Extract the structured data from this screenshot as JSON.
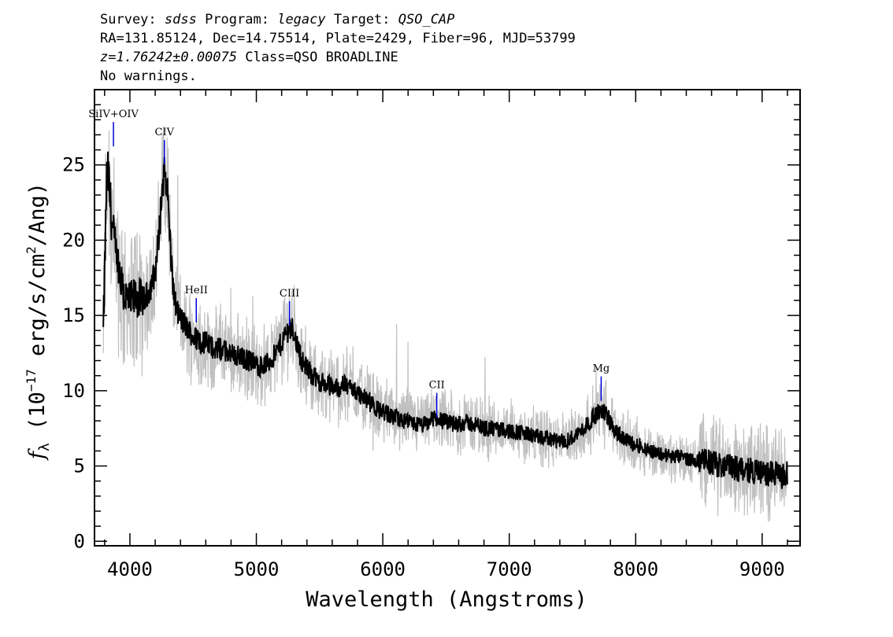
{
  "header": {
    "line1": [
      {
        "text": "Survey: ",
        "italic": false
      },
      {
        "text": "sdss",
        "italic": true
      },
      {
        "text": " Program: ",
        "italic": false
      },
      {
        "text": "legacy",
        "italic": true
      },
      {
        "text": " Target: ",
        "italic": false
      },
      {
        "text": "QSO_CAP",
        "italic": true
      }
    ],
    "line2": "RA=131.85124, Dec=14.75514, Plate=2429, Fiber=96, MJD=53799",
    "line3": [
      {
        "text": "z=1.76242±0.00075",
        "italic": true
      },
      {
        "text": " Class=QSO BROADLINE",
        "italic": false
      }
    ],
    "line4": "No warnings."
  },
  "chart_data": {
    "type": "line",
    "xlabel": "Wavelength (Angstroms)",
    "ylabel": "f_λ (10^-17 erg/s/cm^2/Ang)",
    "ylabel_parts": {
      "f": "f",
      "sub": "λ",
      "pre": " (10",
      "sup1": "−17",
      "mid": " erg/s/cm",
      "sup2": "2",
      "post": "/Ang)"
    },
    "xlim": [
      3720,
      9300
    ],
    "ylim": [
      -0.3,
      30.0
    ],
    "xticks": [
      4000,
      5000,
      6000,
      7000,
      8000,
      9000
    ],
    "yticks": [
      0,
      5,
      10,
      15,
      20,
      25
    ],
    "x_minor_step": 200,
    "y_minor_step": 1,
    "colors": {
      "flux": "#000000",
      "noise": "#c0c0c0",
      "line_marker": "#0000dd"
    },
    "series": [
      {
        "style": "spectrum",
        "x": [
          3790,
          3805,
          3815,
          3830,
          3845,
          3860,
          3880,
          3900,
          3925,
          3950,
          3975,
          4000,
          4025,
          4050,
          4075,
          4100,
          4125,
          4150,
          4175,
          4200,
          4225,
          4250,
          4265,
          4280,
          4295,
          4310,
          4330,
          4350,
          4375,
          4400,
          4450,
          4500,
          4550,
          4600,
          4650,
          4700,
          4750,
          4800,
          4850,
          4900,
          4950,
          5000,
          5050,
          5100,
          5150,
          5200,
          5240,
          5270,
          5300,
          5330,
          5360,
          5400,
          5450,
          5500,
          5550,
          5600,
          5650,
          5700,
          5750,
          5800,
          5850,
          5900,
          5950,
          6000,
          6050,
          6100,
          6150,
          6200,
          6250,
          6300,
          6350,
          6400,
          6450,
          6500,
          6550,
          6600,
          6650,
          6700,
          6750,
          6800,
          6850,
          6900,
          6950,
          7000,
          7050,
          7100,
          7150,
          7200,
          7250,
          7300,
          7350,
          7400,
          7450,
          7500,
          7550,
          7600,
          7650,
          7700,
          7730,
          7750,
          7780,
          7800,
          7850,
          7900,
          7950,
          8000,
          8050,
          8100,
          8150,
          8200,
          8250,
          8300,
          8350,
          8400,
          8450,
          8500,
          8550,
          8600,
          8650,
          8700,
          8750,
          8800,
          8850,
          8900,
          8950,
          9000,
          9050,
          9100,
          9150,
          9200
        ],
        "y": [
          13.8,
          19.5,
          23.8,
          24.3,
          22.5,
          21.0,
          19.5,
          18.2,
          17.0,
          16.5,
          16.1,
          15.8,
          16.0,
          16.3,
          16.1,
          15.9,
          16.2,
          16.6,
          17.2,
          17.9,
          19.8,
          22.8,
          24.2,
          24.6,
          23.5,
          21.3,
          18.2,
          16.2,
          15.2,
          14.8,
          14.2,
          13.6,
          13.3,
          13.2,
          12.9,
          12.8,
          12.7,
          12.5,
          12.3,
          12.1,
          12.0,
          11.7,
          11.6,
          11.9,
          12.4,
          13.2,
          13.9,
          14.3,
          13.8,
          12.8,
          12.0,
          11.5,
          11.0,
          10.6,
          10.4,
          10.3,
          10.2,
          10.4,
          10.2,
          9.9,
          9.5,
          9.2,
          8.8,
          8.6,
          8.4,
          8.2,
          8.0,
          7.9,
          7.8,
          7.7,
          7.8,
          8.2,
          8.1,
          7.9,
          7.8,
          7.8,
          7.9,
          7.8,
          7.7,
          7.5,
          7.5,
          7.4,
          7.4,
          7.3,
          7.3,
          7.2,
          7.1,
          7.0,
          6.8,
          6.9,
          6.7,
          6.6,
          6.7,
          6.9,
          7.2,
          7.6,
          8.1,
          8.5,
          8.7,
          8.6,
          8.3,
          7.8,
          7.2,
          6.8,
          6.6,
          6.4,
          6.3,
          6.1,
          5.9,
          5.8,
          5.7,
          5.6,
          5.6,
          5.5,
          5.4,
          5.3,
          5.3,
          5.2,
          5.1,
          5.0,
          4.9,
          4.8,
          4.8,
          4.7,
          4.7,
          4.6,
          4.5,
          4.5,
          4.3,
          4.5
        ]
      }
    ],
    "line_labels": [
      {
        "label": "SiIV+OIV",
        "x": 3870,
        "y": 27.8
      },
      {
        "label": "CIV",
        "x": 4273,
        "y": 26.6
      },
      {
        "label": "HeII",
        "x": 4525,
        "y": 16.1
      },
      {
        "label": "CIII",
        "x": 5262,
        "y": 15.9
      },
      {
        "label": "CII",
        "x": 6427,
        "y": 9.8
      },
      {
        "label": "Mg",
        "x": 7727,
        "y": 10.9
      }
    ]
  }
}
